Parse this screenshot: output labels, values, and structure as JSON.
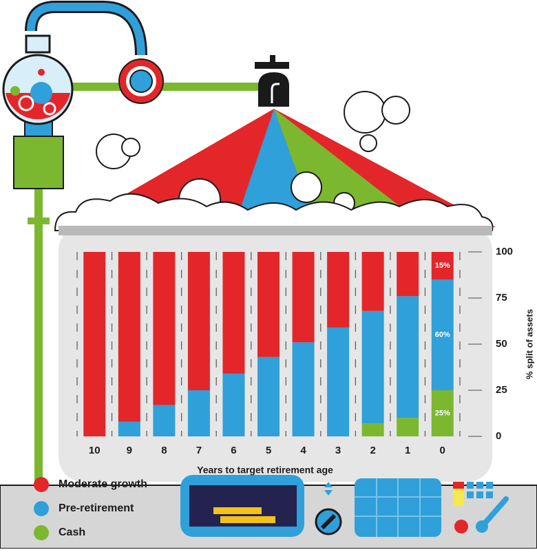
{
  "chart_data": {
    "type": "stacked_bar",
    "xlabel": "Years to target retirement age",
    "ylabel": "% split of assets",
    "categories": [
      "10",
      "9",
      "8",
      "7",
      "6",
      "5",
      "4",
      "3",
      "2",
      "1",
      "0"
    ],
    "series": [
      {
        "name": "Moderate growth",
        "color": "#e3262a",
        "values": [
          100,
          92,
          83,
          75,
          66,
          57,
          49,
          41,
          32,
          24,
          15
        ],
        "value_labels": [
          null,
          null,
          null,
          null,
          null,
          null,
          null,
          null,
          null,
          null,
          "15%"
        ]
      },
      {
        "name": "Pre-retirement",
        "color": "#2fa0da",
        "values": [
          0,
          8,
          17,
          25,
          34,
          43,
          51,
          59,
          61,
          66,
          60
        ],
        "value_labels": [
          null,
          null,
          null,
          null,
          null,
          null,
          null,
          null,
          null,
          null,
          "60%"
        ]
      },
      {
        "name": "Cash",
        "color": "#7cb82f",
        "values": [
          0,
          0,
          0,
          0,
          0,
          0,
          0,
          0,
          7,
          10,
          25
        ],
        "value_labels": [
          null,
          null,
          null,
          null,
          null,
          null,
          null,
          null,
          null,
          null,
          "25%"
        ]
      }
    ],
    "ylim": [
      0,
      100
    ],
    "yticks": [
      0,
      25,
      50,
      75,
      100
    ]
  }
}
